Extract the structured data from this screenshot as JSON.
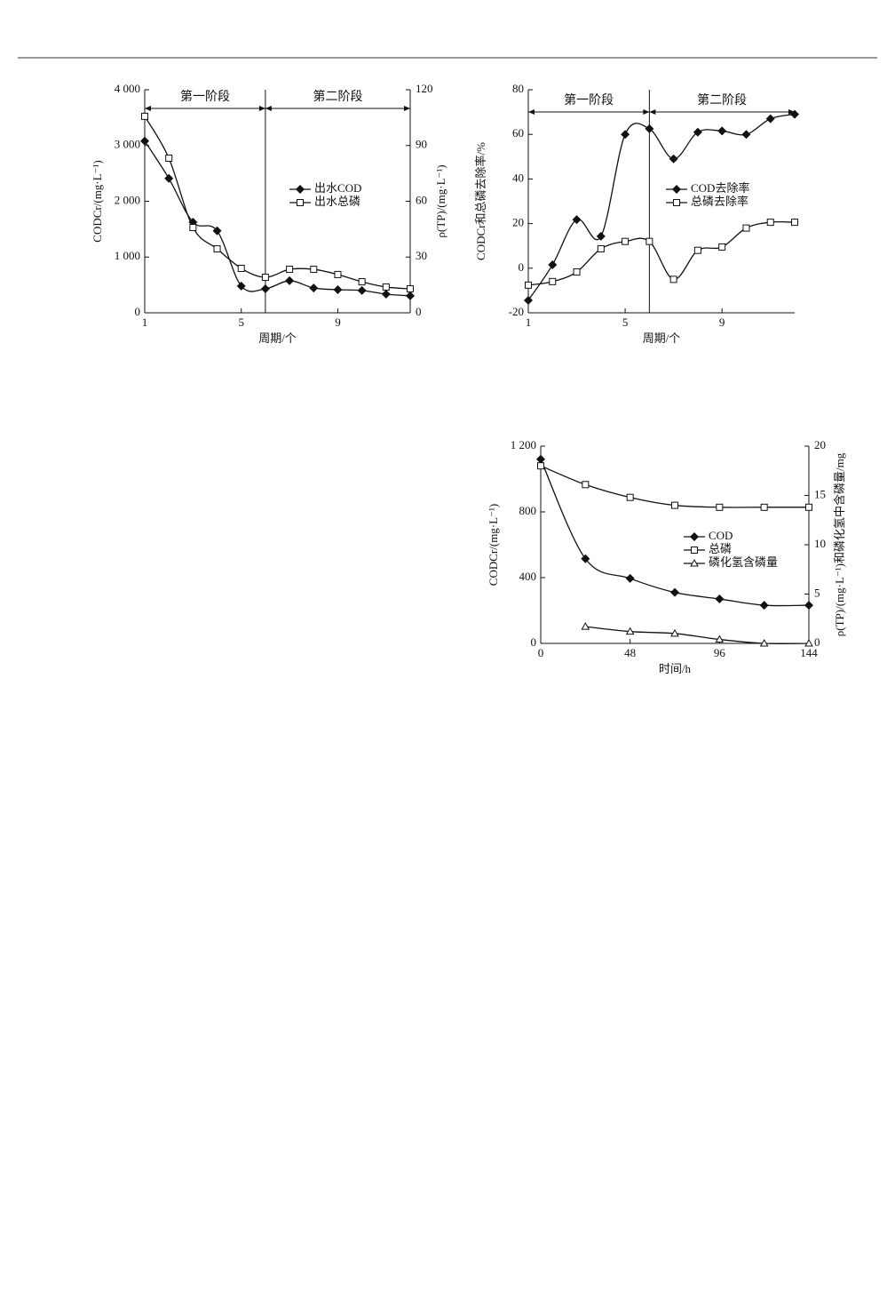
{
  "chart_data": [
    {
      "type": "line",
      "annotations": [
        "第一阶段",
        "第二阶段"
      ],
      "divider_x": 6,
      "xlabel": "周期/个",
      "ylabel": "CODCr/(mg·L⁻¹)",
      "y2label": "ρ(TP)/(mg·L⁻¹)",
      "x": [
        1,
        2,
        3,
        4,
        5,
        6,
        7,
        8,
        9,
        10,
        11,
        12
      ],
      "xlim": [
        1,
        12
      ],
      "xticks": [
        1,
        5,
        9
      ],
      "ylim": [
        0,
        4000
      ],
      "yticks": [
        0,
        {
          "value": 1000,
          "label": "1 000"
        },
        {
          "value": 2000,
          "label": "2 000"
        },
        {
          "value": 3000,
          "label": "3 000"
        },
        {
          "value": 4000,
          "label": "4 000"
        }
      ],
      "y2lim": [
        0,
        120
      ],
      "y2ticks": [
        0,
        30,
        60,
        90,
        120
      ],
      "series": [
        {
          "name": "出水COD",
          "color": "#111111",
          "marker": "diamond",
          "values": [
            3080,
            2410,
            1625,
            1470,
            480,
            430,
            575,
            445,
            415,
            400,
            335,
            305
          ]
        },
        {
          "name": "出水总磷",
          "color": "#111111",
          "marker": "square",
          "axis": "y2",
          "values": [
            105.7,
            83.2,
            45.9,
            34.4,
            23.9,
            19.1,
            23.4,
            23.4,
            20.6,
            16.7,
            13.9,
            12.9
          ]
        }
      ]
    },
    {
      "type": "line",
      "annotations": [
        "第一阶段",
        "第二阶段"
      ],
      "divider_x": 6,
      "xlabel": "周期/个",
      "ylabel": "CODCr和总磷去除率/%",
      "x": [
        1,
        2,
        3,
        4,
        5,
        6,
        7,
        8,
        9,
        10,
        11,
        12
      ],
      "xlim": [
        1,
        12
      ],
      "xticks": [
        1,
        5,
        9
      ],
      "ylim": [
        -20,
        80
      ],
      "yticks": [
        -20,
        0,
        20,
        40,
        60,
        80
      ],
      "series": [
        {
          "name": "COD去除率",
          "color": "#111111",
          "marker": "diamond",
          "values": [
            -14.4,
            1.5,
            21.8,
            14.3,
            60,
            62.5,
            49,
            61,
            61.5,
            60,
            67,
            69
          ]
        },
        {
          "name": "总磷去除率",
          "color": "#111111",
          "marker": "square",
          "values": [
            -7.6,
            -6,
            -1.7,
            8.7,
            12,
            12,
            -5,
            8,
            9.5,
            18,
            20.6,
            20.6
          ]
        }
      ]
    },
    {
      "type": "line",
      "xlabel": "时间/h",
      "ylabel": "CODCr/(mg·L⁻¹)",
      "y2label": "ρ(TP)/(mg·L⁻¹)和磷化氢中含磷量/mg",
      "x": [
        0,
        24,
        48,
        72,
        96,
        120,
        144
      ],
      "xlim": [
        0,
        144
      ],
      "xticks": [
        0,
        48,
        96,
        144
      ],
      "ylim": [
        0,
        1200
      ],
      "yticks": [
        0,
        400,
        800,
        {
          "value": 1200,
          "label": "1 200"
        }
      ],
      "y2lim": [
        0,
        20
      ],
      "y2ticks": [
        0,
        5,
        10,
        15,
        20
      ],
      "series": [
        {
          "name": "COD",
          "color": "#111111",
          "marker": "diamond",
          "values": [
            1120,
            515,
            395,
            310,
            270,
            232,
            232
          ]
        },
        {
          "name": "总磷",
          "color": "#111111",
          "marker": "square",
          "axis": "y2",
          "values": [
            18.0,
            16.1,
            14.8,
            14.0,
            13.8,
            13.8,
            13.8
          ]
        },
        {
          "name": "磷化氢含磷量",
          "color": "#111111",
          "marker": "triangle",
          "axis": "y2",
          "values": [
            null,
            1.7,
            1.2,
            1.0,
            0.4,
            0,
            0
          ]
        }
      ]
    }
  ]
}
